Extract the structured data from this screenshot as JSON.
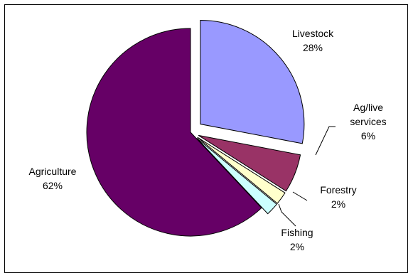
{
  "chart_data": {
    "type": "pie",
    "categories": [
      "Livestock",
      "Ag/live services",
      "Forestry",
      "Fishing",
      "Agriculture"
    ],
    "values": [
      28,
      6,
      2,
      2,
      62
    ],
    "data_labels": [
      [
        "Livestock",
        "28%"
      ],
      [
        "Ag/live",
        "services",
        "6%"
      ],
      [
        "Forestry",
        "2%"
      ],
      [
        "Fishing",
        "2%"
      ],
      [
        "Agriculture",
        "62%"
      ]
    ],
    "colors": [
      "#9999ff",
      "#993366",
      "#ffffcc",
      "#ccffff",
      "#660066"
    ],
    "exploded": true,
    "legend": "none",
    "title": ""
  }
}
